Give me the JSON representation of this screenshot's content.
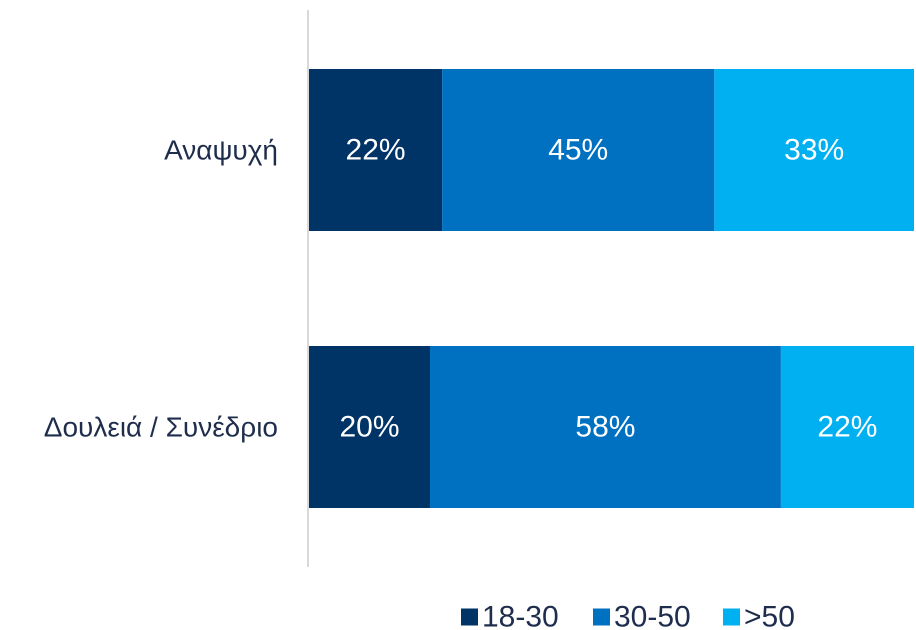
{
  "chart_data": {
    "type": "bar",
    "orientation": "horizontal",
    "stacked": true,
    "normalized": true,
    "categories": [
      "Αναψυχή",
      "Δουλειά / Συνέδριο"
    ],
    "series": [
      {
        "name": "18-30",
        "values": [
          22,
          20
        ],
        "labels": [
          "22%",
          "20%"
        ],
        "color": "#003366"
      },
      {
        "name": "30-50",
        "values": [
          45,
          58
        ],
        "labels": [
          "45%",
          "58%"
        ],
        "color": "#0070C0"
      },
      {
        "name": ">50",
        "values": [
          33,
          22
        ],
        "labels": [
          "33%",
          "22%"
        ],
        "color": "#00B0F0"
      }
    ],
    "xlim": [
      0,
      100
    ],
    "title": "",
    "xlabel": "",
    "ylabel": "",
    "grid": false,
    "legend": "bottom"
  }
}
